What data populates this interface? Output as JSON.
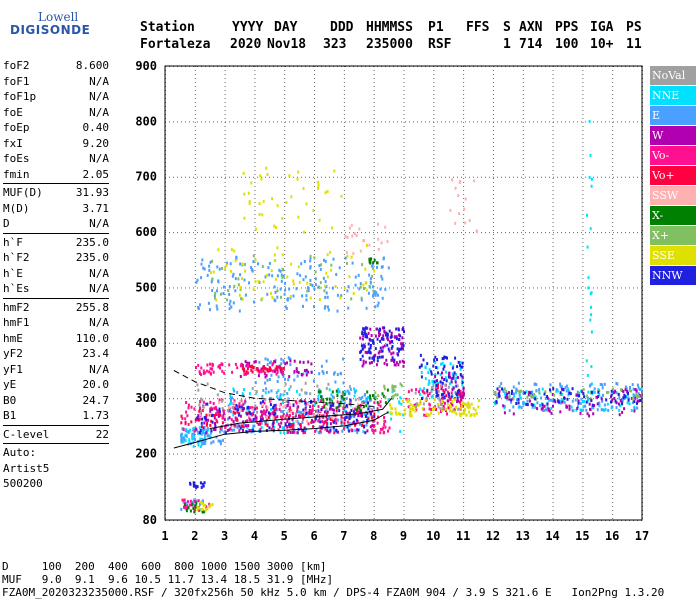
{
  "logo": {
    "line1": "Lowell",
    "line2": "DIGISONDE"
  },
  "header": {
    "labels": [
      "Station",
      "YYYY",
      "DAY",
      "DDD",
      "HHMMSS",
      "P1",
      "FFS",
      "S",
      "AXN",
      "PPS",
      "IGA",
      "PS"
    ],
    "values": [
      "Fortaleza",
      "2020",
      "Nov18",
      "323",
      "235000",
      "RSF",
      "",
      "1",
      "714",
      "100",
      "10+",
      "11"
    ]
  },
  "params": {
    "group1": [
      [
        "foF2",
        "8.600"
      ],
      [
        "foF1",
        "N/A"
      ],
      [
        "foF1p",
        "N/A"
      ],
      [
        "foE",
        "N/A"
      ],
      [
        "foEp",
        "0.40"
      ],
      [
        "fxI",
        "9.20"
      ],
      [
        "foEs",
        "N/A"
      ],
      [
        "fmin",
        "2.05"
      ]
    ],
    "group2": [
      [
        "MUF(D)",
        "31.93"
      ],
      [
        "M(D)",
        "3.71"
      ],
      [
        "D",
        "N/A"
      ]
    ],
    "group3": [
      [
        "h`F",
        "235.0"
      ],
      [
        "h`F2",
        "235.0"
      ],
      [
        "h`E",
        "N/A"
      ],
      [
        "h`Es",
        "N/A"
      ]
    ],
    "group4": [
      [
        "hmF2",
        "255.8"
      ],
      [
        "hmF1",
        "N/A"
      ],
      [
        "hmE",
        "110.0"
      ],
      [
        "yF2",
        "23.4"
      ],
      [
        "yF1",
        "N/A"
      ],
      [
        "yE",
        "20.0"
      ],
      [
        "B0",
        "24.7"
      ],
      [
        "B1",
        "1.73"
      ]
    ],
    "group5": [
      [
        "C-level",
        "22"
      ]
    ],
    "auto": [
      "Auto:",
      "Artist5",
      "500200"
    ]
  },
  "legend": [
    {
      "label": "NoVal",
      "color": "#a0a0a0"
    },
    {
      "label": "NNE",
      "color": "#00e0ff"
    },
    {
      "label": "E",
      "color": "#4aa0ff"
    },
    {
      "label": "W",
      "color": "#b000b0"
    },
    {
      "label": "Vo-",
      "color": "#ff1090"
    },
    {
      "label": "Vo+",
      "color": "#ff0040"
    },
    {
      "label": "SSW",
      "color": "#ffb0b0"
    },
    {
      "label": "X-",
      "color": "#008000"
    },
    {
      "label": "X+",
      "color": "#80c060"
    },
    {
      "label": "SSE",
      "color": "#e0e000"
    },
    {
      "label": "NNW",
      "color": "#2020e0"
    }
  ],
  "footer": {
    "d_line": "D     100  200  400  600  800 1000 1500 3000 [km]",
    "muf_line": "MUF   9.0  9.1  9.6 10.5 11.7 13.4 18.5 31.9 [MHz]",
    "file_line": "FZA0M_2020323235000.RSF / 320fx256h 50 kHz 5.0 km / DPS-4 FZA0M 904 / 3.9 S 321.6 E   Ion2Png 1.3.20"
  },
  "chart_data": {
    "type": "scatter",
    "xlim": [
      1,
      17
    ],
    "ylim": [
      80,
      900
    ],
    "xticks": [
      1,
      2,
      3,
      4,
      5,
      6,
      7,
      8,
      9,
      10,
      11,
      12,
      13,
      14,
      15,
      16,
      17
    ],
    "yticks": [
      80,
      200,
      300,
      400,
      500,
      600,
      700,
      800,
      900
    ],
    "grid": true,
    "legend_position": "right",
    "series": [
      {
        "name": "NNE",
        "color": "#00e0ff",
        "clusters": [
          [
            1.5,
            2.5,
            215,
            250,
            60
          ],
          [
            3,
            9,
            240,
            320,
            120
          ],
          [
            9.5,
            11,
            300,
            370,
            60
          ],
          [
            12,
            17,
            280,
            320,
            80
          ],
          [
            15.1,
            15.3,
            300,
            820,
            20
          ]
        ]
      },
      {
        "name": "E",
        "color": "#4aa0ff",
        "clusters": [
          [
            1.5,
            3,
            220,
            250,
            50
          ],
          [
            2,
            8.5,
            460,
            560,
            180
          ],
          [
            3,
            8,
            240,
            320,
            160
          ],
          [
            4,
            7,
            330,
            380,
            50
          ],
          [
            12,
            17,
            280,
            330,
            120
          ],
          [
            1.5,
            2.3,
            100,
            120,
            20
          ]
        ]
      },
      {
        "name": "W",
        "color": "#b000b0",
        "clusters": [
          [
            2,
            8,
            240,
            290,
            150
          ],
          [
            3.5,
            6,
            340,
            370,
            50
          ],
          [
            7.5,
            9,
            360,
            430,
            80
          ],
          [
            10,
            11,
            290,
            350,
            40
          ],
          [
            12,
            17,
            270,
            320,
            80
          ]
        ]
      },
      {
        "name": "Vo-",
        "color": "#ff1090",
        "clusters": [
          [
            1.5,
            8.5,
            240,
            300,
            200
          ],
          [
            2,
            5,
            345,
            365,
            60
          ],
          [
            1.5,
            2.5,
            100,
            120,
            20
          ],
          [
            9,
            11,
            270,
            320,
            50
          ]
        ]
      },
      {
        "name": "Vo+",
        "color": "#ff0040",
        "clusters": [
          [
            1.5,
            8,
            250,
            280,
            80
          ],
          [
            3.5,
            5,
            350,
            360,
            30
          ],
          [
            10,
            11,
            280,
            330,
            20
          ]
        ]
      },
      {
        "name": "SSW",
        "color": "#ffb0b0",
        "clusters": [
          [
            2,
            8,
            260,
            300,
            50
          ],
          [
            7,
            8.5,
            560,
            620,
            20
          ],
          [
            10.5,
            11.5,
            600,
            700,
            15
          ]
        ]
      },
      {
        "name": "X-",
        "color": "#008000",
        "clusters": [
          [
            6,
            8.5,
            280,
            320,
            40
          ],
          [
            7.8,
            8.2,
            545,
            555,
            10
          ],
          [
            1.6,
            2.3,
            95,
            115,
            15
          ]
        ]
      },
      {
        "name": "X+",
        "color": "#80c060",
        "clusters": [
          [
            2.5,
            8,
            480,
            560,
            40
          ],
          [
            8,
            9,
            300,
            330,
            20
          ],
          [
            12,
            17,
            300,
            320,
            40
          ]
        ]
      },
      {
        "name": "SSE",
        "color": "#e0e000",
        "clusters": [
          [
            8.5,
            11.5,
            270,
            300,
            90
          ],
          [
            2.5,
            8,
            480,
            580,
            60
          ],
          [
            3.5,
            7,
            600,
            720,
            40
          ],
          [
            2,
            2.6,
            100,
            115,
            15
          ]
        ]
      },
      {
        "name": "NNW",
        "color": "#2020e0",
        "clusters": [
          [
            2,
            8,
            240,
            300,
            100
          ],
          [
            7.5,
            9,
            370,
            430,
            80
          ],
          [
            9.5,
            11,
            300,
            380,
            60
          ],
          [
            12,
            17,
            290,
            320,
            60
          ],
          [
            1.8,
            2.3,
            140,
            155,
            15
          ]
        ]
      },
      {
        "name": "NoVal",
        "color": "#a0a0a0",
        "clusters": [
          [
            2,
            8,
            270,
            330,
            40
          ],
          [
            9,
            11,
            280,
            330,
            20
          ]
        ]
      }
    ],
    "curves": [
      {
        "name": "trace-black",
        "color": "#000",
        "points": [
          [
            1.3,
            210
          ],
          [
            2,
            220
          ],
          [
            3,
            235
          ],
          [
            4,
            240
          ],
          [
            5,
            242
          ],
          [
            6,
            245
          ],
          [
            7,
            250
          ],
          [
            8,
            260
          ],
          [
            8.5,
            275
          ]
        ]
      },
      {
        "name": "trace-black-2",
        "color": "#000",
        "points": [
          [
            2.5,
            245
          ],
          [
            3.5,
            255
          ],
          [
            5,
            262
          ],
          [
            6.5,
            268
          ],
          [
            7.5,
            272
          ],
          [
            8.3,
            280
          ],
          [
            8.6,
            300
          ]
        ]
      },
      {
        "name": "trace-dashed",
        "color": "#000",
        "dash": true,
        "points": [
          [
            1.3,
            350
          ],
          [
            2,
            330
          ],
          [
            3,
            310
          ],
          [
            4,
            300
          ],
          [
            5.5,
            295
          ],
          [
            7,
            290
          ],
          [
            8,
            285
          ]
        ]
      }
    ]
  }
}
